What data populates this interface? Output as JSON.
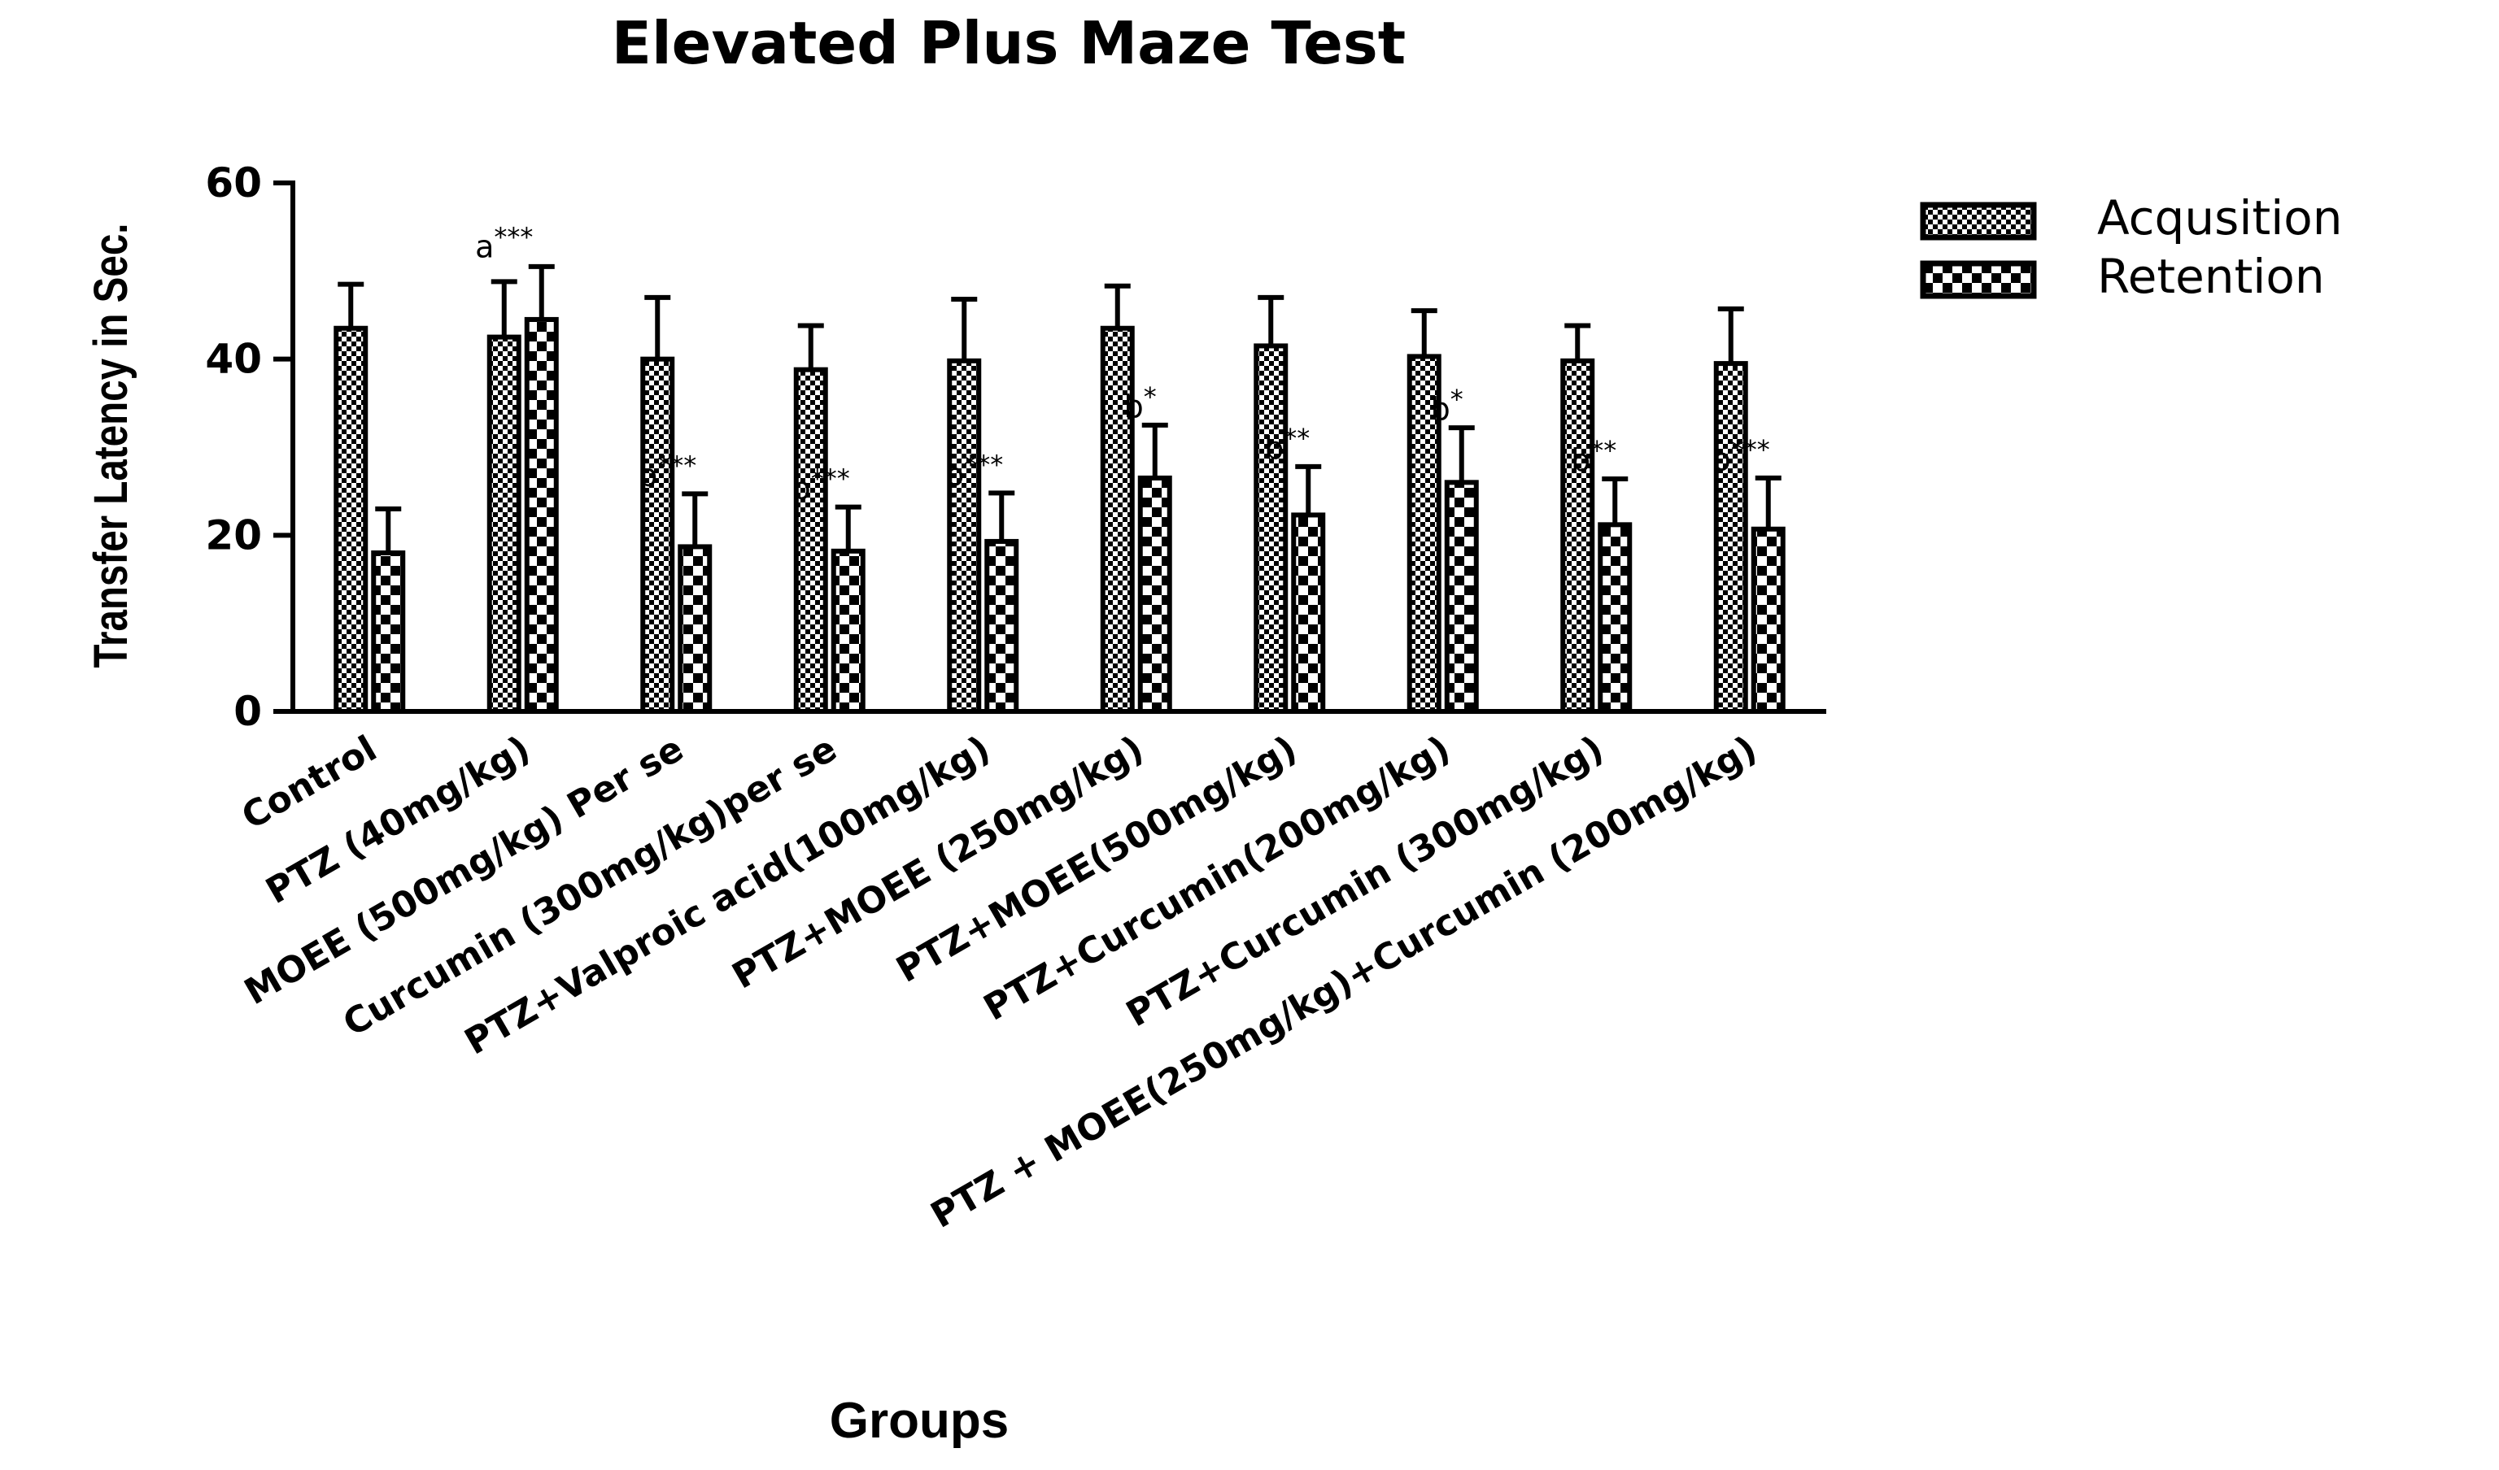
{
  "chart_data": {
    "type": "bar",
    "title": "Elevated Plus Maze Test",
    "xlabel": "Groups",
    "ylabel": "Transfer Latency in Sec.",
    "ylim": [
      0,
      60
    ],
    "yticks": [
      0,
      20,
      40,
      60
    ],
    "legend_position": "top-right",
    "grid": false,
    "categories": [
      "Control",
      "PTZ (40mg/kg)",
      "MOEE (500mg/kg) Per se",
      "Curcumin (300mg/kg)per se",
      "PTZ+Valproic acid(100mg/kg)",
      "PTZ+MOEE (250mg/kg)",
      "PTZ+MOEE(500mg/kg)",
      "PTZ+Curcumin(200mg/kg)",
      "PTZ+Curcumin (300mg/kg)",
      "PTZ + MOEE(250mg/kg)+Curcumin (200mg/kg)"
    ],
    "series": [
      {
        "name": "Acqusition",
        "pattern": "dense-check",
        "values": [
          43.5,
          42.5,
          40,
          38.8,
          39.8,
          43.5,
          41.5,
          40.3,
          39.8,
          39.5
        ],
        "errors": [
          5,
          6.3,
          7,
          5,
          7,
          4.8,
          5.5,
          5.2,
          4,
          6.2
        ]
      },
      {
        "name": "Retention",
        "pattern": "large-check",
        "values": [
          18,
          44.5,
          18.7,
          18.2,
          19.3,
          26.5,
          22.3,
          26,
          21.2,
          20.7
        ],
        "errors": [
          5,
          6,
          6,
          5,
          5.5,
          6,
          5.5,
          6.2,
          5.2,
          5.8
        ]
      }
    ],
    "annotations": [
      {
        "category": 1,
        "series": 0,
        "base": "a",
        "stars": "***"
      },
      {
        "category": 2,
        "series": 1,
        "base": "b",
        "stars": "***"
      },
      {
        "category": 3,
        "series": 1,
        "base": "b",
        "stars": "***"
      },
      {
        "category": 4,
        "series": 1,
        "base": "b",
        "stars": "***"
      },
      {
        "category": 5,
        "series": 1,
        "base": "b",
        "stars": "*"
      },
      {
        "category": 6,
        "series": 1,
        "base": "b",
        "stars": "**"
      },
      {
        "category": 7,
        "series": 1,
        "base": "b",
        "stars": "*"
      },
      {
        "category": 8,
        "series": 1,
        "base": "b",
        "stars": "**"
      },
      {
        "category": 9,
        "series": 1,
        "base": "b",
        "stars": "***"
      }
    ]
  }
}
